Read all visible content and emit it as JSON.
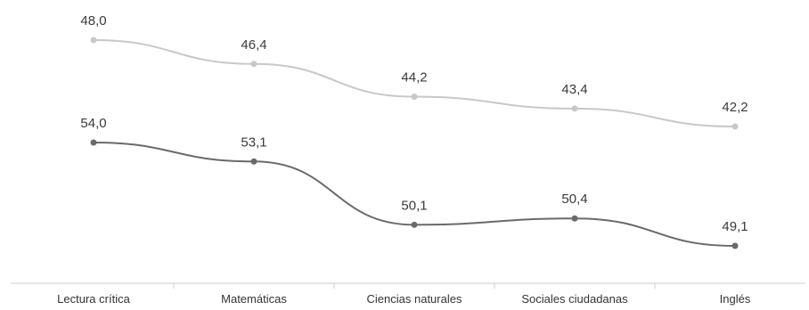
{
  "chart_data": {
    "type": "line",
    "title": "",
    "xlabel": "",
    "ylabel": "",
    "categories": [
      "Lectura crítica",
      "Matemáticas",
      "Ciencias naturales",
      "Sociales ciudadanas",
      "Inglés"
    ],
    "series": [
      {
        "color": "#c8c8c8",
        "values": [
          48.0,
          46.4,
          44.2,
          43.4,
          42.2
        ],
        "labels": [
          "48,0",
          "46,4",
          "44,2",
          "43,4",
          "42,2"
        ]
      },
      {
        "color": "#6a6a6a",
        "values": [
          54.0,
          53.1,
          50.1,
          50.4,
          49.1
        ],
        "labels": [
          "54,0",
          "53,1",
          "50,1",
          "50,4",
          "49,1"
        ]
      }
    ],
    "grid": false,
    "legend": "none"
  }
}
